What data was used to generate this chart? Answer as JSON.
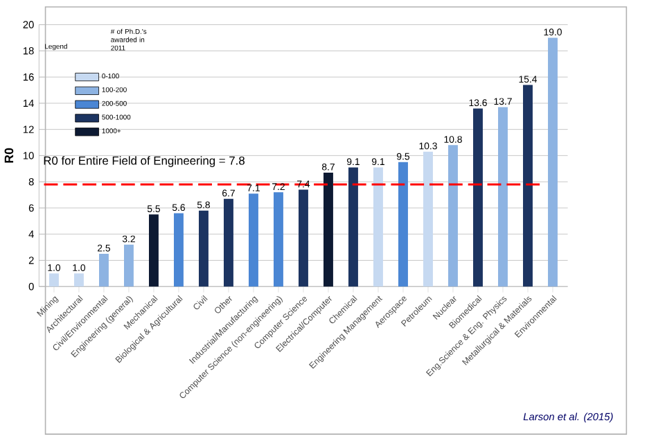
{
  "chart_data": {
    "type": "bar",
    "ylabel": "R0",
    "categories": [
      "Mining",
      "Architectural",
      "Civil/Environmental",
      "Engineering (general)",
      "Mechanical",
      "Biological & Agricultural",
      "Civil",
      "Other",
      "Industrial/Manufacturing",
      "Computer Science (non-engineering)",
      "Computer Science",
      "Electrical/Computer",
      "Chemical",
      "Engineering Management",
      "Aerospace",
      "Petroleum",
      "Nuclear",
      "Biomedical",
      "Eng.Science & Eng. Physics",
      "Metallurgical & Materials",
      "Environmental"
    ],
    "legend_title": "# of Ph.D.'s awarded in 2011",
    "series": [
      {
        "name": "0-100",
        "color": "#c6d9f1",
        "values": [
          1.0,
          1.0,
          null,
          null,
          null,
          null,
          null,
          null,
          null,
          null,
          null,
          null,
          null,
          9.1,
          null,
          10.3,
          null,
          null,
          null,
          null,
          null
        ],
        "value_labels": [
          "1.0",
          "1.0",
          null,
          null,
          null,
          null,
          null,
          null,
          null,
          null,
          null,
          null,
          null,
          "9.1",
          null,
          "10.3",
          null,
          null,
          null,
          null,
          null
        ]
      },
      {
        "name": "100-200",
        "color": "#8db3e2",
        "values": [
          null,
          null,
          2.5,
          3.2,
          null,
          null,
          null,
          null,
          null,
          null,
          null,
          null,
          null,
          null,
          null,
          null,
          10.8,
          null,
          13.7,
          null,
          19.0
        ],
        "value_labels": [
          null,
          null,
          "2.5",
          "3.2",
          null,
          null,
          null,
          null,
          null,
          null,
          null,
          null,
          null,
          null,
          null,
          null,
          "10.8",
          null,
          "13.7",
          null,
          "19.0"
        ]
      },
      {
        "name": "200-500",
        "color": "#4a86d4",
        "values": [
          null,
          null,
          null,
          null,
          null,
          5.6,
          null,
          null,
          7.1,
          7.2,
          null,
          null,
          null,
          null,
          9.5,
          null,
          null,
          null,
          null,
          null,
          null
        ],
        "value_labels": [
          null,
          null,
          null,
          null,
          null,
          "5.6",
          null,
          null,
          "7.1",
          "7.2",
          null,
          null,
          null,
          null,
          "9.5",
          null,
          null,
          null,
          null,
          null,
          null
        ]
      },
      {
        "name": "500-1000",
        "color": "#1c3461",
        "values": [
          null,
          null,
          null,
          null,
          null,
          null,
          5.8,
          6.7,
          null,
          null,
          7.4,
          null,
          9.1,
          null,
          null,
          null,
          null,
          13.6,
          null,
          15.4,
          null
        ],
        "value_labels": [
          null,
          null,
          null,
          null,
          null,
          null,
          "5.8",
          "6.7",
          null,
          null,
          "7.4",
          null,
          "9.1",
          null,
          null,
          null,
          null,
          "13.6",
          null,
          "15.4",
          null
        ]
      },
      {
        "name": "1000+",
        "color": "#0d1a33",
        "values": [
          null,
          null,
          null,
          null,
          5.5,
          null,
          null,
          null,
          null,
          null,
          null,
          8.7,
          null,
          null,
          null,
          null,
          null,
          null,
          null,
          null,
          null
        ],
        "value_labels": [
          null,
          null,
          null,
          null,
          "5.5",
          null,
          null,
          null,
          null,
          null,
          null,
          "8.7",
          null,
          null,
          null,
          null,
          null,
          null,
          null,
          null,
          null
        ]
      }
    ],
    "ylim": [
      0,
      20
    ],
    "yticks": [
      0,
      2,
      4,
      6,
      8,
      10,
      12,
      14,
      16,
      18,
      20
    ],
    "grid": "y",
    "legend": "top left",
    "ref_lines": [
      {
        "axis": "y",
        "value": 7.8,
        "label": "R0 for  Entire Field of Engineering = 7.8",
        "color": "#ff0000",
        "line_style": "dashed"
      }
    ],
    "annotations": [
      "Legend",
      "Larson et al. (2015)"
    ]
  }
}
